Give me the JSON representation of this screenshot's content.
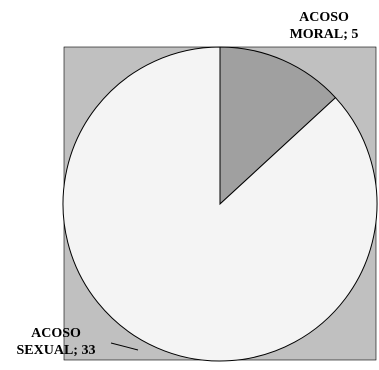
{
  "chart_data": {
    "type": "pie",
    "title": "",
    "slices": [
      {
        "name": "ACOSO MORAL",
        "value": 5,
        "color": "#a0a0a0",
        "label_line1": "ACOSO",
        "label_line2": "MORAL; 5"
      },
      {
        "name": "ACOSO SEXUAL",
        "value": 33,
        "color": "#f4f4f4",
        "label_line1": "ACOSO",
        "label_line2": "SEXUAL; 33"
      }
    ],
    "plot_background": "#c0c0c0",
    "legend": "none"
  }
}
